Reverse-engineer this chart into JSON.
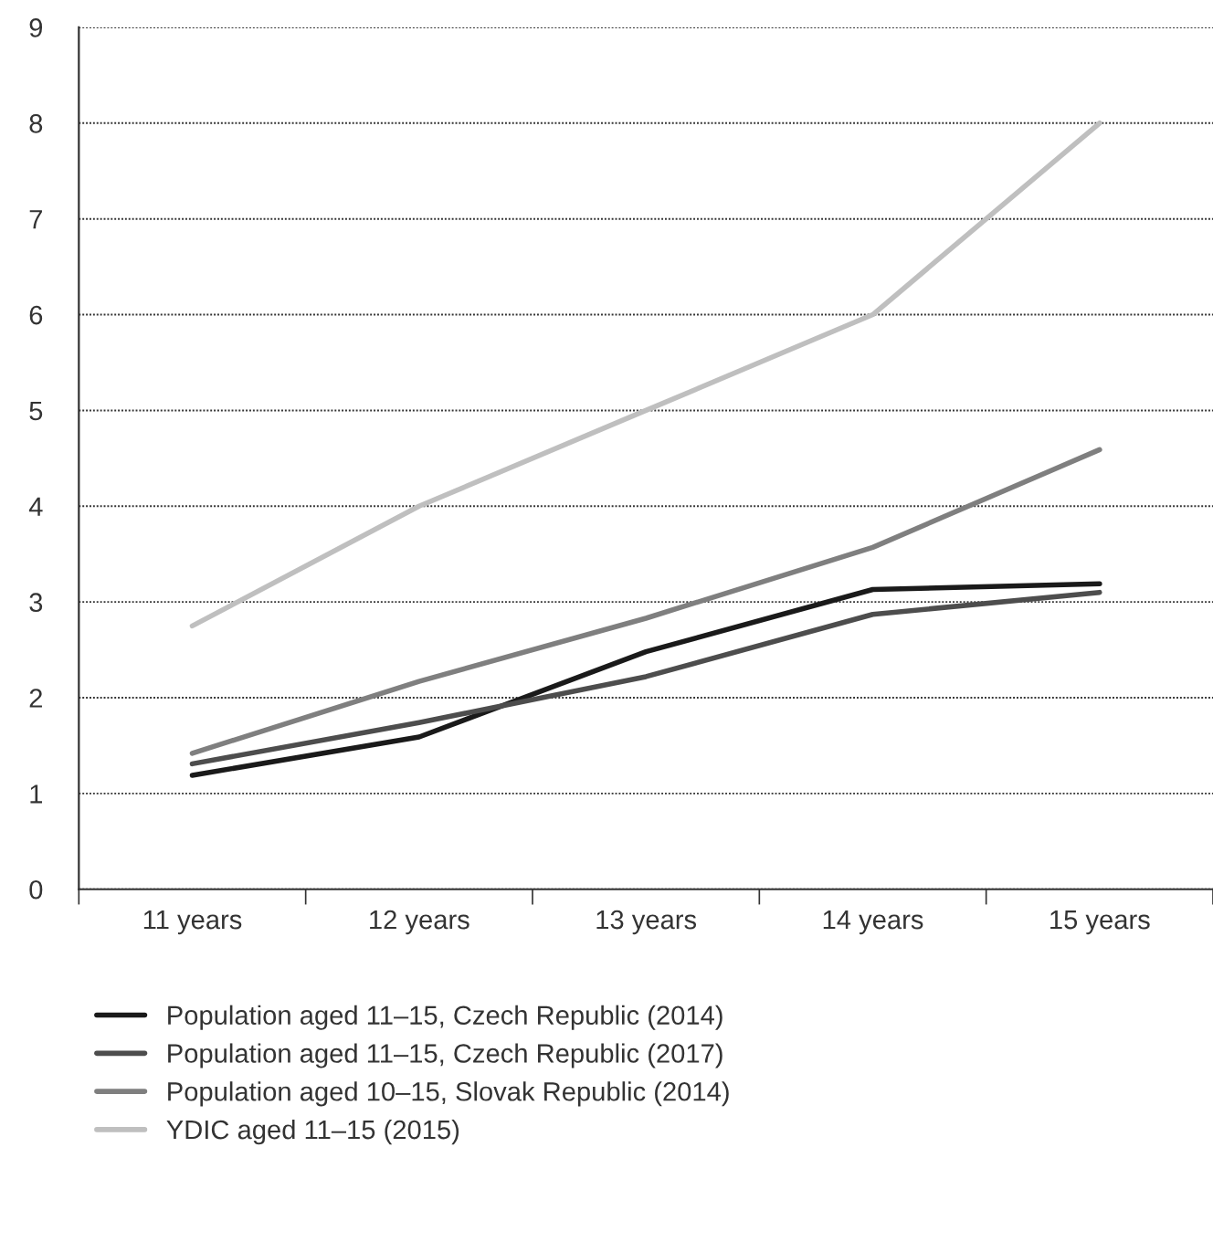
{
  "chart_data": {
    "type": "line",
    "categories": [
      "11 years",
      "12 years",
      "13 years",
      "14 years",
      "15 years"
    ],
    "ylim": [
      0,
      9
    ],
    "yticks": [
      0,
      1,
      2,
      3,
      4,
      5,
      6,
      7,
      8,
      9
    ],
    "grid": "y",
    "legend": "bottom",
    "marker": "none",
    "line_style": "solid",
    "series": [
      {
        "name": "Population aged 11–15, Czech Republic (2014)",
        "color": "#1a1a1a",
        "values": [
          1.19,
          1.59,
          2.48,
          3.13,
          3.19
        ]
      },
      {
        "name": "Population aged 11–15, Czech Republic (2017)",
        "color": "#4d4d4d",
        "values": [
          1.31,
          1.74,
          2.22,
          2.87,
          3.1
        ]
      },
      {
        "name": "Population aged 10–15, Slovak Republic (2014)",
        "color": "#7f7f7f",
        "values": [
          1.42,
          2.17,
          2.83,
          3.57,
          4.59
        ]
      },
      {
        "name": "YDIC aged 11–15 (2015)",
        "color": "#bfbfbf",
        "values": [
          2.75,
          4.0,
          5.0,
          6.0,
          8.0
        ]
      }
    ]
  }
}
